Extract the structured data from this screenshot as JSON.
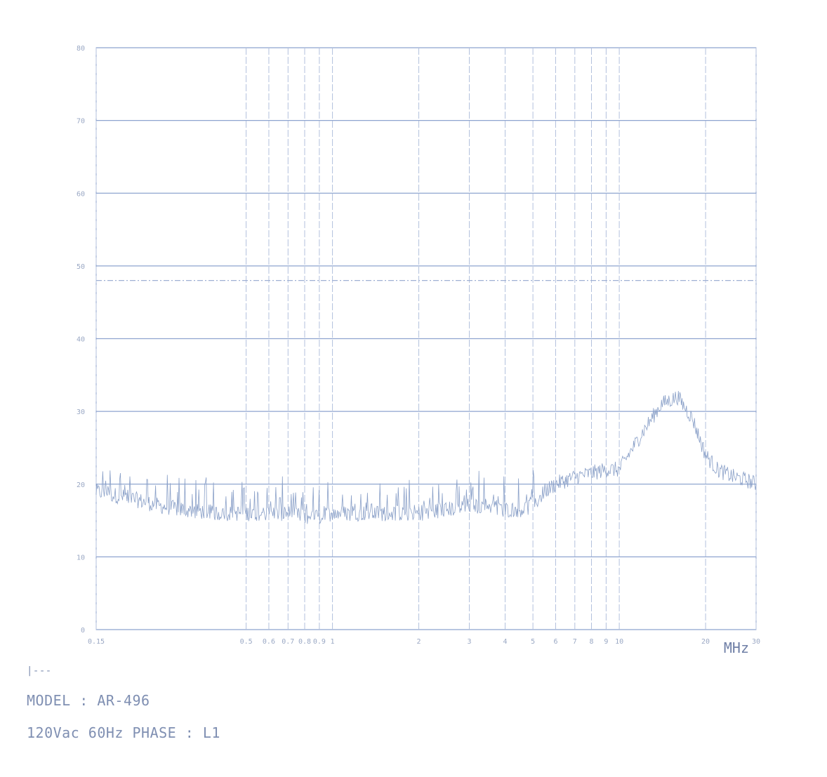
{
  "chart_data": {
    "type": "line",
    "x_scale": "log",
    "xlim": [
      0.15,
      30
    ],
    "ylim": [
      0,
      80
    ],
    "grid": true,
    "x_unit_label": "MHz",
    "x_ticks": [
      {
        "value": 0.15,
        "label": "0.15"
      },
      {
        "value": 0.5,
        "label": "0.5"
      },
      {
        "value": 0.6,
        "label": "0.6"
      },
      {
        "value": 0.7,
        "label": "0.7"
      },
      {
        "value": 0.8,
        "label": "0.8"
      },
      {
        "value": 0.9,
        "label": "0.9"
      },
      {
        "value": 1,
        "label": "1"
      },
      {
        "value": 2,
        "label": "2"
      },
      {
        "value": 3,
        "label": "3"
      },
      {
        "value": 4,
        "label": "4"
      },
      {
        "value": 5,
        "label": "5"
      },
      {
        "value": 6,
        "label": "6"
      },
      {
        "value": 7,
        "label": "7"
      },
      {
        "value": 8,
        "label": "8"
      },
      {
        "value": 9,
        "label": "9"
      },
      {
        "value": 10,
        "label": "10"
      },
      {
        "value": 20,
        "label": "20"
      },
      {
        "value": 30,
        "label": "30"
      }
    ],
    "y_ticks": [
      {
        "value": 0,
        "label": "0"
      },
      {
        "value": 10,
        "label": "10"
      },
      {
        "value": 20,
        "label": "20"
      },
      {
        "value": 30,
        "label": "30"
      },
      {
        "value": 40,
        "label": "40"
      },
      {
        "value": 50,
        "label": "50"
      },
      {
        "value": 60,
        "label": "60"
      },
      {
        "value": 70,
        "label": "70"
      },
      {
        "value": 80,
        "label": "80"
      }
    ],
    "limit_line": {
      "y": 48,
      "style": "dash-dot"
    },
    "series": [
      {
        "x": [
          0.15,
          0.2,
          0.25,
          0.3,
          0.4,
          0.5,
          0.6,
          0.7,
          0.8,
          0.9,
          1.0,
          1.5,
          2.0,
          2.5,
          3.0,
          3.5,
          4.0,
          4.5,
          5.0,
          5.5,
          6.0,
          7.0,
          8.0,
          9.0,
          10.0,
          12.0,
          14.0,
          16.0,
          18.0,
          20.0,
          22.0,
          25.0,
          28.0,
          30.0
        ],
        "y": [
          19,
          18,
          17,
          16.5,
          16,
          16,
          16,
          16,
          15.5,
          15.5,
          16,
          16,
          16,
          16.5,
          17,
          17,
          16.5,
          16.5,
          17,
          19,
          20,
          21,
          21.5,
          22,
          22,
          27,
          31,
          32,
          29,
          24,
          22,
          21,
          20.5,
          20
        ]
      }
    ]
  },
  "footer": {
    "legend_marker": "|---",
    "model_line": "MODEL : AR-496",
    "power_line": "120Vac 60Hz PHASE : L1"
  }
}
